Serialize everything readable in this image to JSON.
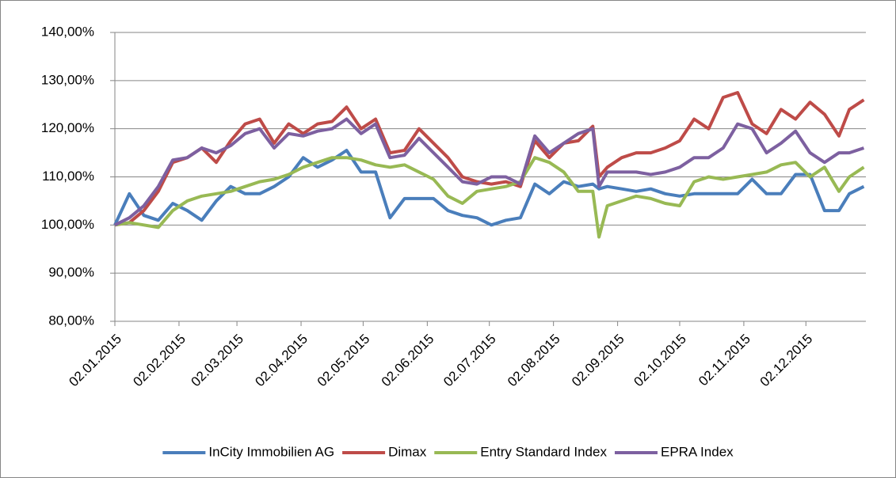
{
  "chart_data": {
    "type": "line",
    "x": [
      "02.01.2015",
      "09.01.2015",
      "16.01.2015",
      "23.01.2015",
      "30.01.2015",
      "06.02.2015",
      "13.02.2015",
      "20.02.2015",
      "27.02.2015",
      "06.03.2015",
      "13.03.2015",
      "20.03.2015",
      "27.03.2015",
      "03.04.2015",
      "10.04.2015",
      "17.04.2015",
      "24.04.2015",
      "01.05.2015",
      "08.05.2015",
      "15.05.2015",
      "22.05.2015",
      "29.05.2015",
      "05.06.2015",
      "12.06.2015",
      "19.06.2015",
      "26.06.2015",
      "03.07.2015",
      "10.07.2015",
      "17.07.2015",
      "24.07.2015",
      "31.07.2015",
      "07.08.2015",
      "14.08.2015",
      "21.08.2015",
      "24.08.2015",
      "28.08.2015",
      "04.09.2015",
      "11.09.2015",
      "18.09.2015",
      "25.09.2015",
      "02.10.2015",
      "09.10.2015",
      "16.10.2015",
      "23.10.2015",
      "30.10.2015",
      "06.11.2015",
      "13.11.2015",
      "20.11.2015",
      "27.11.2015",
      "04.12.2015",
      "11.12.2015",
      "18.12.2015",
      "23.12.2015",
      "30.12.2015"
    ],
    "series": [
      {
        "name": "InCity Immobilien AG",
        "color": "#4a7ebb",
        "values": [
          100,
          106.5,
          102,
          101,
          104.5,
          103,
          101,
          105,
          108,
          106.5,
          106.5,
          108,
          110,
          114,
          112,
          113.5,
          115.5,
          111,
          111,
          101.5,
          105.5,
          105.5,
          105.5,
          103,
          102,
          101.5,
          100,
          101,
          101.5,
          108.5,
          106.5,
          109,
          108,
          108.5,
          107.5,
          108,
          107.5,
          107,
          107.5,
          106.5,
          106,
          106.5,
          106.5,
          106.5,
          106.5,
          109.5,
          106.5,
          106.5,
          110.5,
          110.5,
          103,
          103,
          106.5,
          108
        ]
      },
      {
        "name": "Dimax",
        "color": "#be4b48",
        "values": [
          100,
          100.5,
          103,
          107,
          113,
          114,
          116,
          113,
          117.5,
          121,
          122,
          117,
          121,
          119,
          121,
          121.5,
          124.5,
          120,
          122,
          115,
          115.5,
          120,
          117,
          114,
          110,
          109,
          108.5,
          109,
          108,
          117.5,
          114,
          117,
          117.5,
          120.5,
          110,
          112,
          114,
          115,
          115,
          116,
          117.5,
          122,
          120,
          126.5,
          127.5,
          121,
          119,
          124,
          122,
          125.5,
          123,
          118.5,
          124,
          126
        ]
      },
      {
        "name": "Entry Standard Index",
        "color": "#98b954",
        "values": [
          100,
          100.5,
          100,
          99.5,
          103,
          105,
          106,
          106.5,
          107,
          108,
          109,
          109.5,
          110.5,
          112,
          113,
          114,
          114,
          113.5,
          112.5,
          112,
          112.5,
          111,
          109.5,
          106,
          104.5,
          107,
          107.5,
          108,
          109,
          114,
          113,
          111,
          107,
          107,
          97.5,
          104,
          105,
          106,
          105.5,
          104.5,
          104,
          109,
          110,
          109.5,
          110,
          110.5,
          111,
          112.5,
          113,
          110,
          112,
          107,
          110,
          112
        ]
      },
      {
        "name": "EPRA Index",
        "color": "#7d60a0",
        "values": [
          100,
          101.5,
          104,
          108,
          113.5,
          114,
          116,
          115,
          116.5,
          119,
          120,
          116,
          119,
          118.5,
          119.5,
          120,
          122,
          119,
          121,
          114,
          114.5,
          118,
          115,
          112,
          109,
          108.5,
          110,
          110,
          108.5,
          118.5,
          115,
          117,
          119,
          120,
          108,
          111,
          111,
          111,
          110.5,
          111,
          112,
          114,
          114,
          116,
          121,
          120,
          115,
          117,
          119.5,
          115,
          113,
          115,
          115,
          116
        ]
      }
    ],
    "xlim": [
      "02.01.2015",
      "31.12.2015"
    ],
    "xticks": [
      "02.01.2015",
      "02.02.2015",
      "02.03.2015",
      "02.04.2015",
      "02.05.2015",
      "02.06.2015",
      "02.07.2015",
      "02.08.2015",
      "02.09.2015",
      "02.10.2015",
      "02.11.2015",
      "02.12.2015"
    ],
    "ylim": [
      80,
      140
    ],
    "yticks": [
      {
        "value": 80,
        "label": "80,00%"
      },
      {
        "value": 90,
        "label": "90,00%"
      },
      {
        "value": 100,
        "label": "100,00%"
      },
      {
        "value": 110,
        "label": "110,00%"
      },
      {
        "value": 120,
        "label": "120,00%"
      },
      {
        "value": 130,
        "label": "130,00%"
      },
      {
        "value": 140,
        "label": "140,00%"
      }
    ],
    "grid": true,
    "legend": "bottom"
  }
}
